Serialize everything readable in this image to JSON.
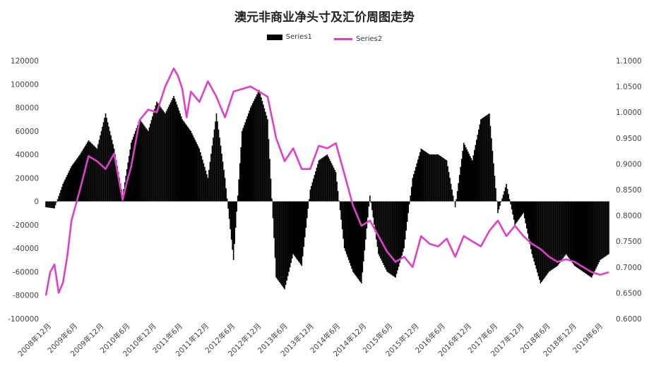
{
  "chart_data": {
    "type": "bar",
    "title": "澳元非商业净头寸及汇价周图走势",
    "legend": [
      "Series1",
      "Series2"
    ],
    "legend_position": "top",
    "grid": false,
    "colors": {
      "series1": "#000000",
      "series2": "#e040c8"
    },
    "y_left": {
      "range": [
        -100000,
        120000
      ],
      "ticks": [
        "120000",
        "100000",
        "80000",
        "60000",
        "40000",
        "20000",
        "0",
        "-20000",
        "-40000",
        "-60000",
        "-80000",
        "-100000"
      ]
    },
    "y_right": {
      "range": [
        0.6,
        1.1
      ],
      "ticks": [
        "1.1000",
        "1.0500",
        "1.0000",
        "0.9500",
        "0.9000",
        "0.8500",
        "0.8000",
        "0.7500",
        "0.7000",
        "0.6500",
        "0.6000"
      ]
    },
    "x_range": [
      "2008-12",
      "2019-12"
    ],
    "x_tick_labels": [
      "2008年12月",
      "2009年6月",
      "2009年12月",
      "2010年6月",
      "2010年12月",
      "2011年6月",
      "2011年12月",
      "2012年6月",
      "2012年12月",
      "2013年6月",
      "2013年12月",
      "2014年6月",
      "2014年12月",
      "2015年6月",
      "2015年12月",
      "2016年6月",
      "2016年12月",
      "2017年6月",
      "2017年12月",
      "2018年6月",
      "2018年12月",
      "2019年6月"
    ],
    "series": [
      {
        "name": "Series1",
        "type": "bar",
        "axis": "left",
        "x": [
          "2008-12",
          "2009-02",
          "2009-04",
          "2009-06",
          "2009-08",
          "2009-10",
          "2009-12",
          "2010-02",
          "2010-04",
          "2010-06",
          "2010-08",
          "2010-10",
          "2010-12",
          "2011-02",
          "2011-04",
          "2011-06",
          "2011-08",
          "2011-10",
          "2011-12",
          "2012-02",
          "2012-04",
          "2012-06",
          "2012-08",
          "2012-10",
          "2012-12",
          "2013-02",
          "2013-04",
          "2013-06",
          "2013-08",
          "2013-10",
          "2013-12",
          "2014-02",
          "2014-04",
          "2014-06",
          "2014-08",
          "2014-10",
          "2014-12",
          "2015-02",
          "2015-04",
          "2015-06",
          "2015-08",
          "2015-10",
          "2015-12",
          "2016-02",
          "2016-04",
          "2016-06",
          "2016-08",
          "2016-10",
          "2016-12",
          "2017-02",
          "2017-04",
          "2017-06",
          "2017-08",
          "2017-10",
          "2017-12",
          "2018-02",
          "2018-04",
          "2018-06",
          "2018-08",
          "2018-10",
          "2018-12",
          "2019-02",
          "2019-04",
          "2019-06",
          "2019-08",
          "2019-10",
          "2019-12"
        ],
        "values": [
          -5000,
          -6000,
          15000,
          30000,
          40000,
          52000,
          45000,
          75000,
          45000,
          5000,
          50000,
          70000,
          60000,
          85000,
          75000,
          90000,
          70000,
          60000,
          45000,
          20000,
          75000,
          20000,
          -50000,
          60000,
          80000,
          95000,
          70000,
          -65000,
          -75000,
          -45000,
          -55000,
          10000,
          35000,
          40000,
          25000,
          -40000,
          -60000,
          -70000,
          5000,
          -45000,
          -60000,
          -65000,
          -40000,
          20000,
          45000,
          40000,
          40000,
          35000,
          -5000,
          50000,
          35000,
          70000,
          75000,
          -10000,
          15000,
          -20000,
          -10000,
          -45000,
          -70000,
          -60000,
          -55000,
          -45000,
          -55000,
          -60000,
          -65000,
          -50000,
          -45000
        ]
      },
      {
        "name": "Series2",
        "type": "line",
        "axis": "right",
        "x": [
          "2008-12",
          "2009-01",
          "2009-02",
          "2009-03",
          "2009-04",
          "2009-05",
          "2009-06",
          "2009-08",
          "2009-10",
          "2009-12",
          "2010-02",
          "2010-04",
          "2010-06",
          "2010-07",
          "2010-08",
          "2010-10",
          "2010-12",
          "2011-02",
          "2011-04",
          "2011-06",
          "2011-07",
          "2011-08",
          "2011-09",
          "2011-10",
          "2011-12",
          "2012-02",
          "2012-04",
          "2012-06",
          "2012-08",
          "2012-10",
          "2012-12",
          "2013-02",
          "2013-04",
          "2013-06",
          "2013-08",
          "2013-10",
          "2013-12",
          "2014-02",
          "2014-04",
          "2014-06",
          "2014-08",
          "2014-10",
          "2014-12",
          "2015-02",
          "2015-04",
          "2015-06",
          "2015-08",
          "2015-10",
          "2015-12",
          "2016-02",
          "2016-04",
          "2016-06",
          "2016-08",
          "2016-10",
          "2016-12",
          "2017-02",
          "2017-04",
          "2017-06",
          "2017-08",
          "2017-10",
          "2017-12",
          "2018-02",
          "2018-04",
          "2018-06",
          "2018-08",
          "2018-10",
          "2018-12",
          "2019-02",
          "2019-04",
          "2019-06",
          "2019-08",
          "2019-10",
          "2019-12"
        ],
        "values": [
          0.645,
          0.69,
          0.705,
          0.65,
          0.67,
          0.72,
          0.79,
          0.85,
          0.915,
          0.905,
          0.89,
          0.92,
          0.83,
          0.865,
          0.895,
          0.985,
          1.005,
          1.0,
          1.05,
          1.085,
          1.07,
          1.045,
          0.99,
          1.04,
          1.02,
          1.06,
          1.03,
          0.99,
          1.04,
          1.045,
          1.05,
          1.04,
          1.03,
          0.95,
          0.905,
          0.93,
          0.89,
          0.89,
          0.935,
          0.93,
          0.94,
          0.88,
          0.82,
          0.78,
          0.79,
          0.76,
          0.73,
          0.71,
          0.72,
          0.7,
          0.76,
          0.745,
          0.74,
          0.755,
          0.72,
          0.76,
          0.75,
          0.74,
          0.77,
          0.79,
          0.76,
          0.78,
          0.76,
          0.745,
          0.735,
          0.72,
          0.71,
          0.715,
          0.71,
          0.7,
          0.69,
          0.685,
          0.69
        ]
      }
    ]
  }
}
